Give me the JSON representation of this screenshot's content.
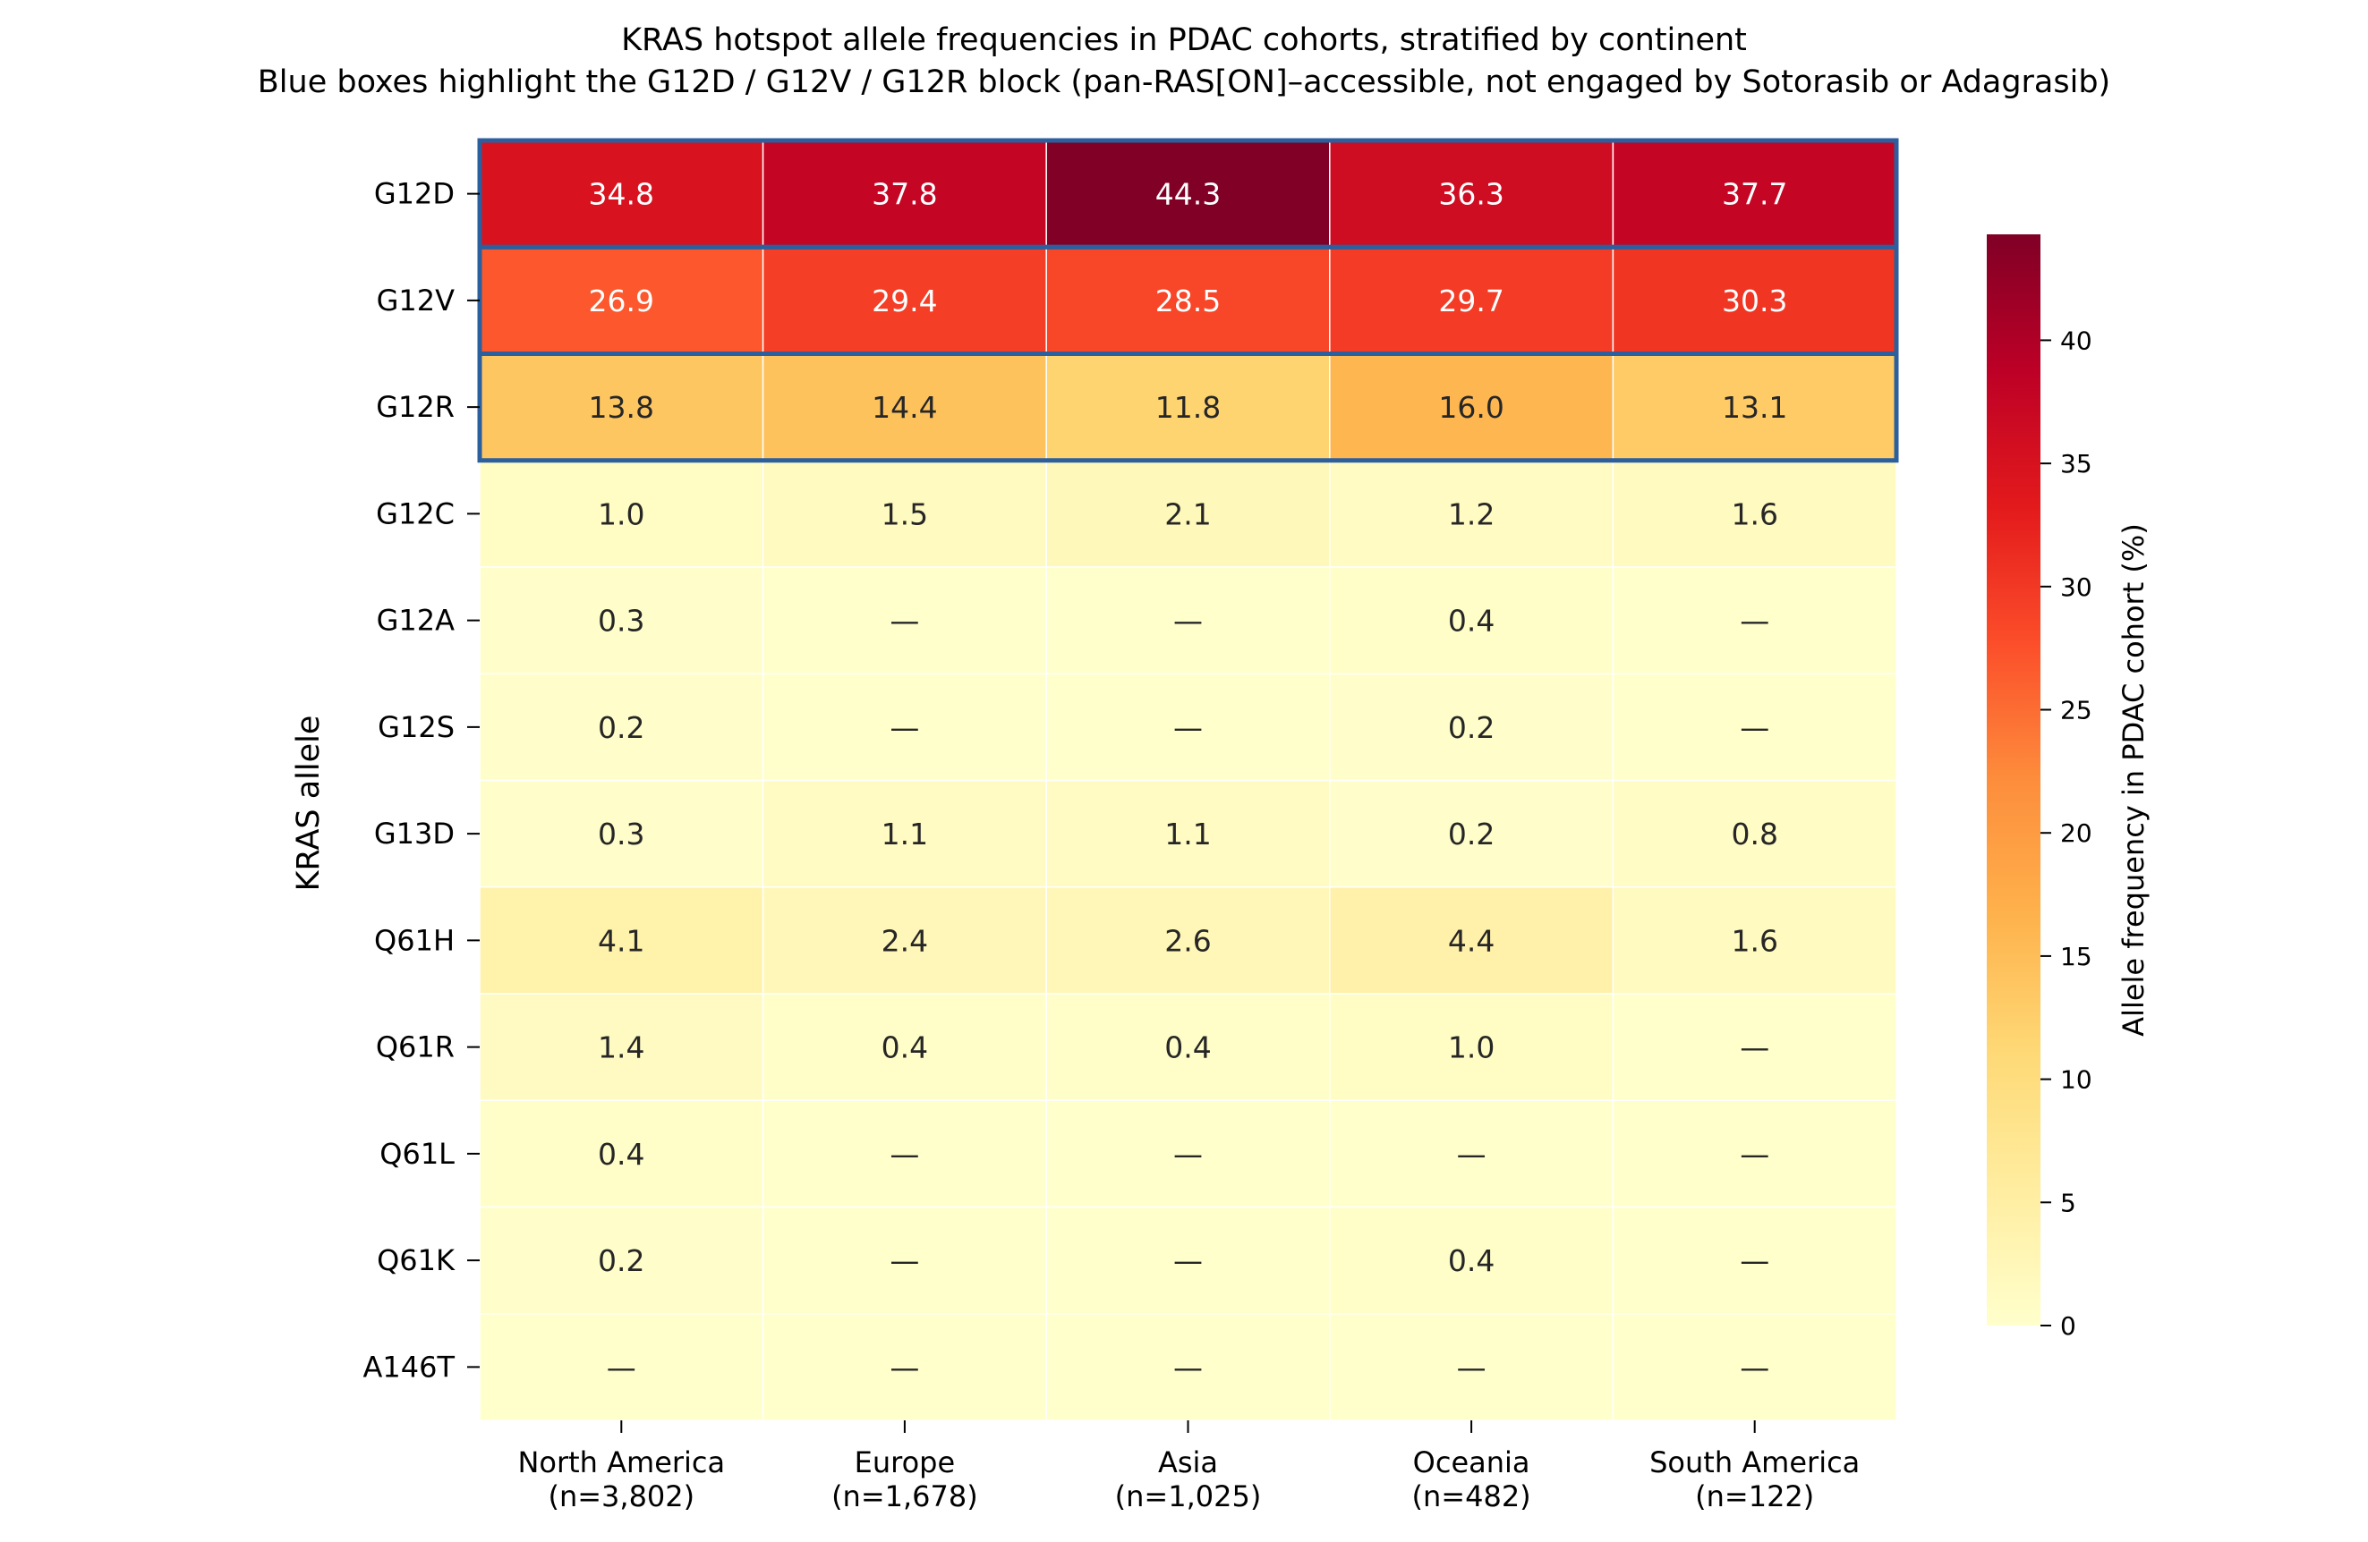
{
  "chart_data": {
    "type": "heatmap",
    "title": "KRAS hotspot allele frequencies in PDAC cohorts, stratified by continent",
    "subtitle": "Blue boxes highlight the G12D / G12V / G12R block (pan-RAS[ON]–accessible, not engaged by Sotorasib or Adagrasib)",
    "xlabel": "",
    "ylabel": "KRAS allele",
    "colorbar_label": "Allele frequency in PDAC cohort (%)",
    "colorbar_range": [
      0,
      44.3
    ],
    "colorbar_ticks": [
      0,
      5,
      10,
      15,
      20,
      25,
      30,
      35,
      40
    ],
    "colormap": "YlOrRd",
    "missing_label": "—",
    "columns": [
      {
        "name": "North America",
        "n": "(n=3,802)"
      },
      {
        "name": "Europe",
        "n": "(n=1,678)"
      },
      {
        "name": "Asia",
        "n": "(n=1,025)"
      },
      {
        "name": "Oceania",
        "n": "(n=482)"
      },
      {
        "name": "South America",
        "n": "(n=122)"
      }
    ],
    "rows": [
      "G12D",
      "G12V",
      "G12R",
      "G12C",
      "G12A",
      "G12S",
      "G13D",
      "Q61H",
      "Q61R",
      "Q61L",
      "Q61K",
      "A146T"
    ],
    "values": [
      [
        34.8,
        37.8,
        44.3,
        36.3,
        37.7
      ],
      [
        26.9,
        29.4,
        28.5,
        29.7,
        30.3
      ],
      [
        13.8,
        14.4,
        11.8,
        16.0,
        13.1
      ],
      [
        1.0,
        1.5,
        2.1,
        1.2,
        1.6
      ],
      [
        0.3,
        null,
        null,
        0.4,
        null
      ],
      [
        0.2,
        null,
        null,
        0.2,
        null
      ],
      [
        0.3,
        1.1,
        1.1,
        0.2,
        0.8
      ],
      [
        4.1,
        2.4,
        2.6,
        4.4,
        1.6
      ],
      [
        1.4,
        0.4,
        0.4,
        1.0,
        null
      ],
      [
        0.4,
        null,
        null,
        null,
        null
      ],
      [
        0.2,
        null,
        null,
        0.4,
        null
      ],
      [
        null,
        null,
        null,
        null,
        null
      ]
    ],
    "highlighted_rows": [
      "G12D",
      "G12V",
      "G12R"
    ],
    "highlight_color": "#2c5f9e"
  }
}
